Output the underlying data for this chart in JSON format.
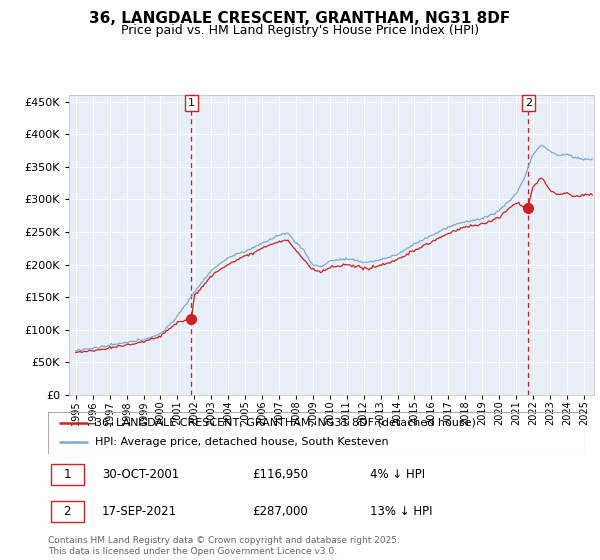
{
  "title": "36, LANGDALE CRESCENT, GRANTHAM, NG31 8DF",
  "subtitle": "Price paid vs. HM Land Registry's House Price Index (HPI)",
  "legend_entry1": "36, LANGDALE CRESCENT, GRANTHAM, NG31 8DF (detached house)",
  "legend_entry2": "HPI: Average price, detached house, South Kesteven",
  "annotation1_date": "30-OCT-2001",
  "annotation1_price": "£116,950",
  "annotation1_hpi": "4% ↓ HPI",
  "annotation2_date": "17-SEP-2021",
  "annotation2_price": "£287,000",
  "annotation2_hpi": "13% ↓ HPI",
  "footer": "Contains HM Land Registry data © Crown copyright and database right 2025.\nThis data is licensed under the Open Government Licence v3.0.",
  "ylim": [
    0,
    460000
  ],
  "yticks": [
    0,
    50000,
    100000,
    150000,
    200000,
    250000,
    300000,
    350000,
    400000,
    450000
  ],
  "year_start": 1995,
  "year_end": 2025,
  "hpi_color": "#7aaad4",
  "price_color": "#cc2222",
  "vline_color": "#cc2222",
  "bg_color": "#e8eef8",
  "grid_color": "#ffffff",
  "box_color": "#cc2222",
  "sale1_year": 2001.83,
  "sale1_price": 116950,
  "sale2_year": 2021.72,
  "sale2_price": 287000
}
